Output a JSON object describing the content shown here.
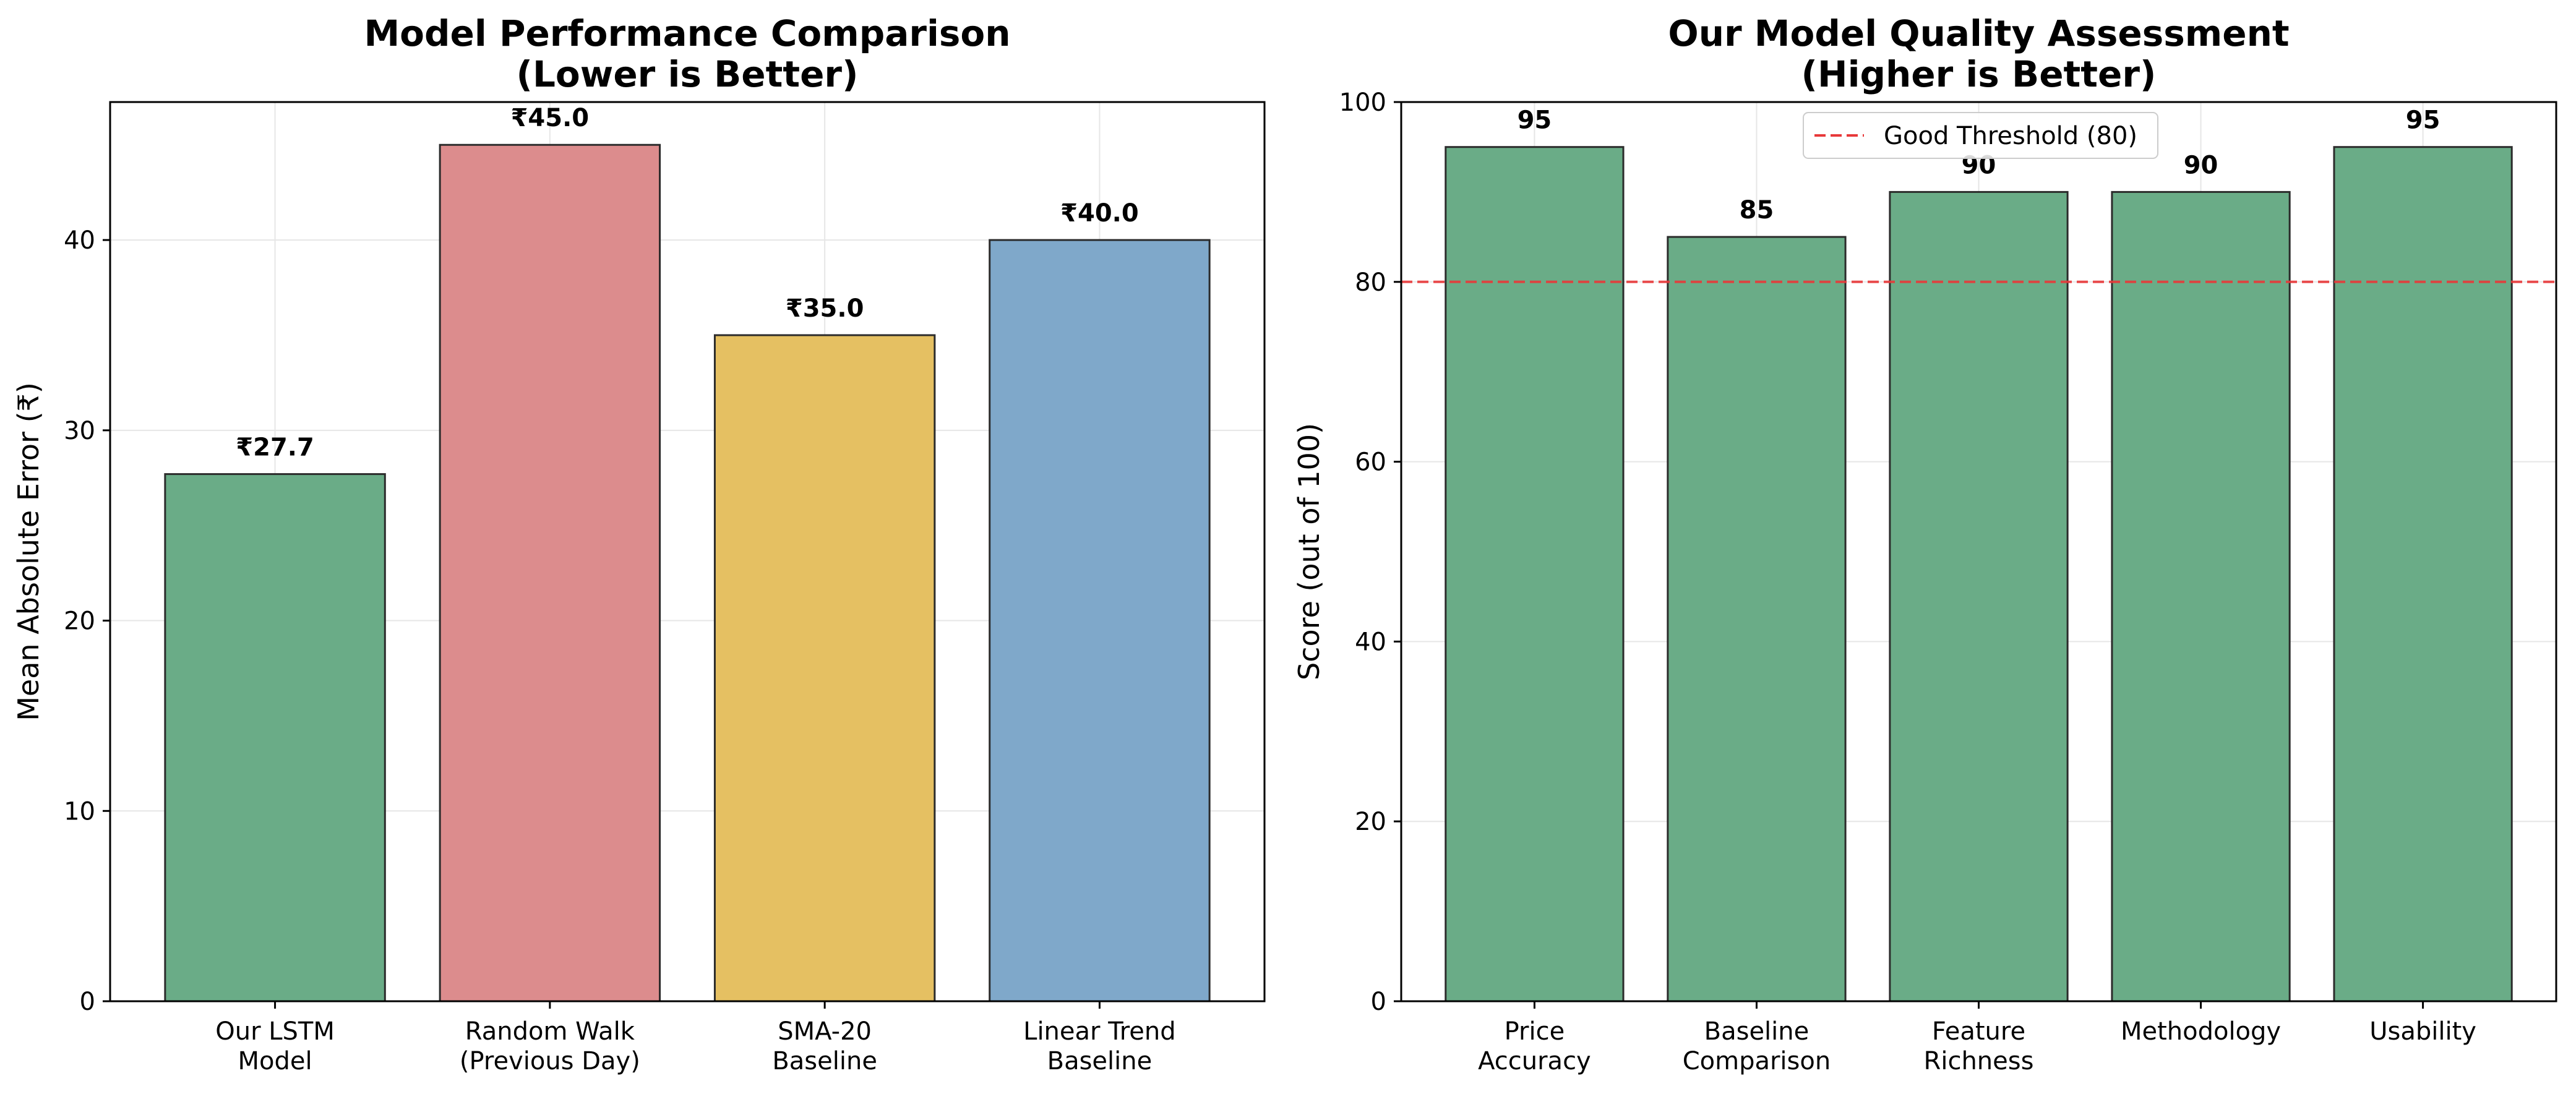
{
  "chart_data": [
    {
      "type": "bar",
      "title": [
        "Model Performance Comparison",
        "(Lower is Better)"
      ],
      "xlabel": "",
      "ylabel": "Mean Absolute Error (₹)",
      "categories": [
        [
          "Our LSTM",
          "Model"
        ],
        [
          "Random Walk",
          "(Previous Day)"
        ],
        [
          "SMA-20",
          "Baseline"
        ],
        [
          "Linear Trend",
          "Baseline"
        ]
      ],
      "values": [
        27.7,
        45.0,
        35.0,
        40.0
      ],
      "data_labels": [
        "₹27.7",
        "₹45.0",
        "₹35.0",
        "₹40.0"
      ],
      "colors": [
        "#6aac87",
        "#dc8c8d",
        "#e5c062",
        "#7fa8ca"
      ],
      "ylim": [
        0,
        47.25
      ],
      "yticks": [
        0,
        10,
        20,
        30,
        40
      ],
      "grid": true
    },
    {
      "type": "bar",
      "title": [
        "Our Model Quality Assessment",
        "(Higher is Better)"
      ],
      "xlabel": "",
      "ylabel": "Score (out of 100)",
      "categories": [
        [
          "Price",
          "Accuracy"
        ],
        [
          "Baseline",
          "Comparison"
        ],
        [
          "Feature",
          "Richness"
        ],
        [
          "Methodology"
        ],
        [
          "Usability"
        ]
      ],
      "values": [
        95,
        85,
        90,
        90,
        95
      ],
      "data_labels": [
        "95",
        "85",
        "90",
        "90",
        "95"
      ],
      "colors": [
        "#6aac87",
        "#6aac87",
        "#6aac87",
        "#6aac87",
        "#6aac87"
      ],
      "ylim": [
        0,
        100
      ],
      "yticks": [
        0,
        20,
        40,
        60,
        80,
        100
      ],
      "grid": true,
      "reference_line": {
        "value": 80,
        "label": "Good Threshold (80)",
        "color": "#e8393a"
      },
      "legend_position": "upper-center"
    }
  ]
}
